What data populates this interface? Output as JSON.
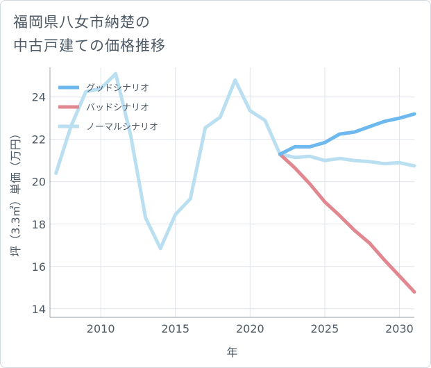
{
  "chart_data": {
    "type": "line",
    "title_lines": [
      "福岡県八女市納楚の",
      "中古戸建ての価格推移"
    ],
    "xlabel": "年",
    "ylabel": "坪（3.3㎡）単価（万円）",
    "xlim": [
      2006.6,
      2031
    ],
    "ylim": [
      13.6,
      25.4
    ],
    "xticks": [
      2010,
      2015,
      2020,
      2025,
      2030
    ],
    "yticks": [
      14,
      16,
      18,
      20,
      22,
      24
    ],
    "legend_position": "top-left",
    "series": [
      {
        "name": "グッドシナリオ",
        "color": "#6cb8ef",
        "x": [
          2022,
          2023,
          2024,
          2025,
          2026,
          2027,
          2028,
          2029,
          2030,
          2031
        ],
        "y": [
          21.3,
          21.65,
          21.65,
          21.85,
          22.25,
          22.35,
          22.6,
          22.85,
          23.0,
          23.2
        ]
      },
      {
        "name": "バッドシナリオ",
        "color": "#e0878f",
        "x": [
          2022,
          2023,
          2024,
          2025,
          2026,
          2027,
          2028,
          2029,
          2030,
          2031
        ],
        "y": [
          21.3,
          20.65,
          19.9,
          19.05,
          18.4,
          17.7,
          17.1,
          16.3,
          15.55,
          14.8
        ]
      },
      {
        "name": "ノーマルシナリオ",
        "color": "#b9dff0",
        "x": [
          2007,
          2008,
          2009,
          2010,
          2011,
          2012,
          2013,
          2014,
          2015,
          2016,
          2017,
          2018,
          2019,
          2020,
          2021,
          2022,
          2023,
          2024,
          2025,
          2026,
          2027,
          2028,
          2029,
          2030,
          2031
        ],
        "y": [
          20.4,
          22.6,
          24.25,
          24.4,
          25.1,
          22.2,
          18.3,
          16.85,
          18.45,
          19.2,
          22.55,
          23.05,
          24.8,
          23.35,
          22.9,
          21.3,
          21.15,
          21.2,
          21.0,
          21.1,
          21.0,
          20.95,
          20.85,
          20.9,
          20.75
        ]
      }
    ]
  }
}
